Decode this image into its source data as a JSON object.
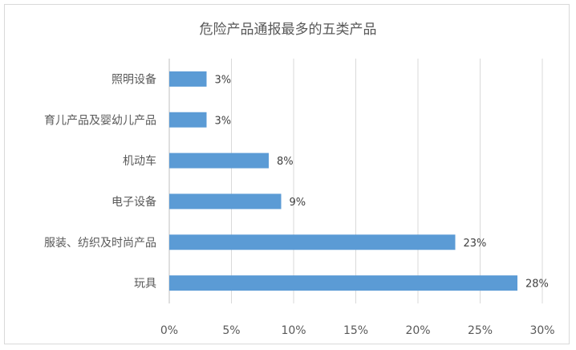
{
  "chart_data": {
    "type": "bar",
    "orientation": "horizontal",
    "title": "危险产品通报最多的五类产品",
    "categories": [
      "照明设备",
      "育儿产品及婴幼儿产品",
      "机动车",
      "电子设备",
      "服装、纺织及时尚产品",
      "玩具"
    ],
    "values": [
      3,
      3,
      8,
      9,
      23,
      28
    ],
    "data_labels": [
      "3%",
      "3%",
      "8%",
      "9%",
      "23%",
      "28%"
    ],
    "xlim": [
      0,
      30
    ],
    "x_ticks": [
      0,
      5,
      10,
      15,
      20,
      25,
      30
    ],
    "x_tick_labels": [
      "0%",
      "5%",
      "10%",
      "15%",
      "20%",
      "25%",
      "30%"
    ],
    "xlabel": "",
    "ylabel": "",
    "grid": true,
    "legend": "none",
    "bar_color": "#5b9bd5",
    "grid_color": "#d9d9d9"
  }
}
